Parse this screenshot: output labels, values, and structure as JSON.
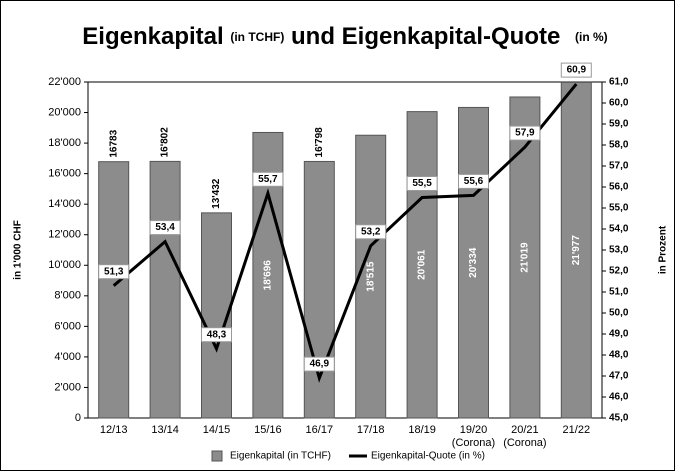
{
  "chart_data": {
    "type": "bar-line",
    "title": [
      "Eigenkapital",
      "(in TCHF)",
      "und Eigenkapital-Quote",
      "(in %)"
    ],
    "ylabel": "in 1'000 CHF",
    "y2label": "in Prozent",
    "categories": [
      "12/13",
      "13/14",
      "14/15",
      "15/16",
      "16/17",
      "17/18",
      "18/19",
      "19/20\n(Corona)",
      "20/21\n(Corona)",
      "21/22"
    ],
    "series": [
      {
        "name": "Eigenkapital (in TCHF)",
        "color": "#8c8c8c",
        "kind": "bar",
        "values": [
          16783,
          16802,
          13432,
          18696,
          16798,
          18515,
          20061,
          20334,
          21019,
          21977
        ],
        "value_labels": [
          "16783",
          "16'802",
          "13'432",
          "18'696",
          "16'798",
          "18'515",
          "20'061",
          "20'334",
          "21'019",
          "21'977"
        ]
      },
      {
        "name": "Eigenkapital-Quote (in %)",
        "color": "#000000",
        "kind": "line",
        "axis": "y2",
        "values": [
          51.3,
          53.4,
          48.3,
          55.7,
          46.9,
          53.2,
          55.5,
          55.6,
          57.9,
          60.9
        ],
        "value_labels": [
          "51,3",
          "53,4",
          "48,3",
          "55,7",
          "46,9",
          "53,2",
          "55,5",
          "55,6",
          "57,9",
          "60,9"
        ]
      }
    ],
    "ylim": [
      0,
      22000
    ],
    "yticks": [
      0,
      {
        "value": 2000,
        "label": "2'000"
      },
      {
        "value": 4000,
        "label": "4'000"
      },
      {
        "value": 6000,
        "label": "6'000"
      },
      {
        "value": 8000,
        "label": "8'000"
      },
      {
        "value": 10000,
        "label": "10'000"
      },
      {
        "value": 12000,
        "label": "12'000"
      },
      {
        "value": 14000,
        "label": "14'000"
      },
      {
        "value": 16000,
        "label": "16'000"
      },
      {
        "value": 18000,
        "label": "18'000"
      },
      {
        "value": 20000,
        "label": "20'000"
      },
      {
        "value": 22000,
        "label": "22'000"
      }
    ],
    "y2lim": [
      45,
      61
    ],
    "y2ticks": [
      {
        "value": 45,
        "label": "45,0"
      },
      {
        "value": 46,
        "label": "46,0"
      },
      {
        "value": 47,
        "label": "47,0"
      },
      {
        "value": 48,
        "label": "48,0"
      },
      {
        "value": 49,
        "label": "49,0"
      },
      {
        "value": 50,
        "label": "50,0"
      },
      {
        "value": 51,
        "label": "51,0"
      },
      {
        "value": 52,
        "label": "52,0"
      },
      {
        "value": 53,
        "label": "53,0"
      },
      {
        "value": 54,
        "label": "54,0"
      },
      {
        "value": 55,
        "label": "55,0"
      },
      {
        "value": 56,
        "label": "56,0"
      },
      {
        "value": 57,
        "label": "57,0"
      },
      {
        "value": 58,
        "label": "58,0"
      },
      {
        "value": 59,
        "label": "59,0"
      },
      {
        "value": 60,
        "label": "60,0"
      },
      {
        "value": 61,
        "label": "61,0"
      }
    ],
    "grid": false,
    "legend": "bottom"
  }
}
